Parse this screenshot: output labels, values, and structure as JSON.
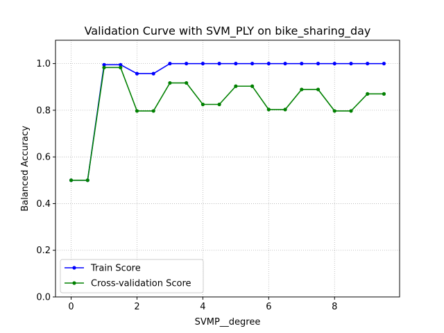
{
  "chart_data": {
    "type": "line",
    "title": "Validation Curve with SVM_PLY on bike_sharing_day",
    "xlabel": "SVMP__degree",
    "ylabel": "Balanced Accuracy",
    "xlim": [
      -0.475,
      9.975
    ],
    "ylim": [
      0.0,
      1.1
    ],
    "xticks": [
      0,
      2,
      4,
      6,
      8
    ],
    "xtick_labels": [
      "0",
      "2",
      "4",
      "6",
      "8"
    ],
    "yticks": [
      0.0,
      0.2,
      0.4,
      0.6,
      0.8,
      1.0
    ],
    "ytick_labels": [
      "0.0",
      "0.2",
      "0.4",
      "0.6",
      "0.8",
      "1.0"
    ],
    "grid": true,
    "legend_position": "lower-left",
    "x": [
      0,
      0.5,
      1,
      1.5,
      2,
      2.5,
      3,
      3.5,
      4,
      4.5,
      5,
      5.5,
      6,
      6.5,
      7,
      7.5,
      8,
      8.5,
      9,
      9.5
    ],
    "series": [
      {
        "name": "Train Score",
        "color": "#0000ff",
        "values": [
          0.5,
          0.5,
          0.995,
          0.995,
          0.957,
          0.957,
          1.0,
          1.0,
          1.0,
          1.0,
          1.0,
          1.0,
          1.0,
          1.0,
          1.0,
          1.0,
          1.0,
          1.0,
          1.0,
          1.0
        ]
      },
      {
        "name": "Cross-validation Score",
        "color": "#008000",
        "values": [
          0.5,
          0.5,
          0.983,
          0.983,
          0.797,
          0.797,
          0.917,
          0.917,
          0.825,
          0.825,
          0.903,
          0.903,
          0.803,
          0.803,
          0.889,
          0.889,
          0.797,
          0.797,
          0.87,
          0.87
        ]
      }
    ]
  }
}
